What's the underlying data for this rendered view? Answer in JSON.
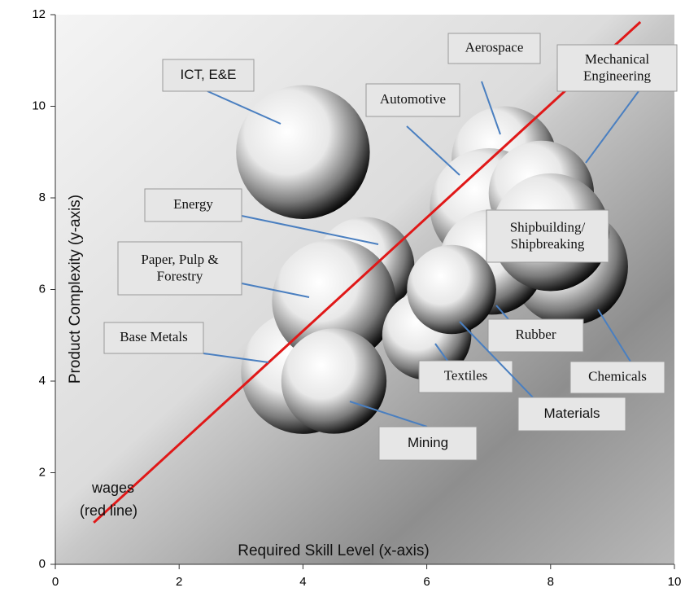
{
  "chart_data": {
    "type": "bubble",
    "xlabel": "Required Skill Level (x-axis)",
    "ylabel": "Product Complexity (y-axis)",
    "xlim": [
      0,
      10
    ],
    "xticks": [
      0,
      2,
      4,
      6,
      8,
      10
    ],
    "ylim": [
      0,
      12
    ],
    "yticks": [
      0,
      2,
      4,
      6,
      8,
      10,
      12
    ],
    "points": [
      {
        "name": "Aerospace",
        "x": 7.25,
        "y": 8.85,
        "size": 0.85
      },
      {
        "name": "Automotive",
        "x": 7,
        "y": 7.8,
        "size": 0.95
      },
      {
        "name": "Mechanical Engineering",
        "x": 7.85,
        "y": 8.1,
        "size": 0.85
      },
      {
        "name": "Chemicals",
        "x": 8.3,
        "y": 6.5,
        "size": 0.95
      },
      {
        "name": "Rubber",
        "x": 7.05,
        "y": 6.6,
        "size": 0.85
      },
      {
        "name": "Shipbuilding/ Shipbreaking",
        "x": 8,
        "y": 7.25,
        "size": 0.95
      },
      {
        "name": "Energy",
        "x": 5,
        "y": 6.5,
        "size": 0.8
      },
      {
        "name": "ICT, E&E",
        "x": 4,
        "y": 9,
        "size": 1.08
      },
      {
        "name": "Base Metals",
        "x": 4,
        "y": 4.2,
        "size": 1
      },
      {
        "name": "Paper, Pulp & Forestry",
        "x": 4.5,
        "y": 5.75,
        "size": 1
      },
      {
        "name": "Mining",
        "x": 4.5,
        "y": 4,
        "size": 0.85
      },
      {
        "name": "Textiles",
        "x": 6,
        "y": 5,
        "size": 0.72
      },
      {
        "name": "Materials",
        "x": 6.4,
        "y": 6,
        "size": 0.72
      }
    ],
    "trend": {
      "name": [
        "wages",
        "(red line)"
      ],
      "color": "#e01818",
      "x": [
        0.62,
        9.45
      ],
      "y": [
        0.91,
        11.84
      ]
    }
  }
}
